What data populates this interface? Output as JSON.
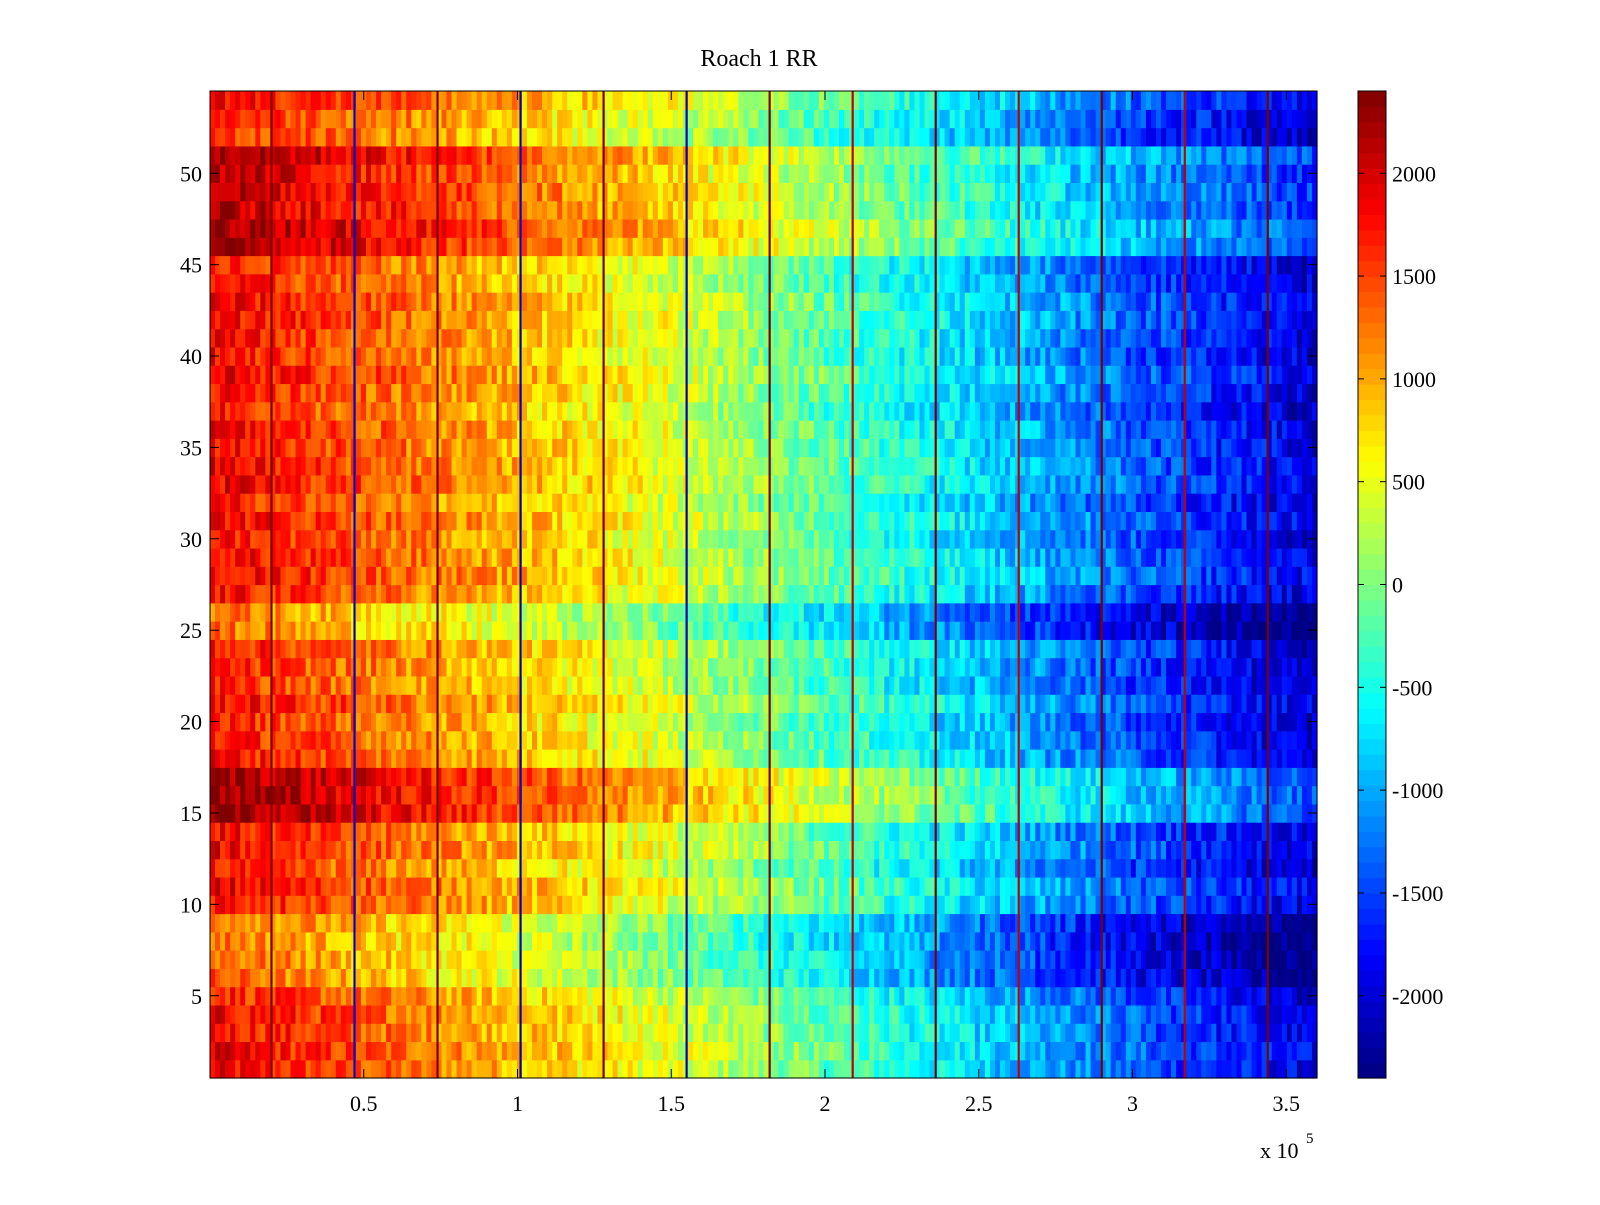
{
  "chart_data": {
    "type": "heatmap",
    "title": "Roach 1 RR",
    "xlabel": "",
    "ylabel": "",
    "x_exponent_label": {
      "base": "x 10",
      "exponent": "5"
    },
    "xlim": [
      0,
      3.6
    ],
    "x_unit_multiplier": 100000,
    "ylim": [
      0.5,
      54.5
    ],
    "x_ticks": [
      0.5,
      1,
      1.5,
      2,
      2.5,
      3,
      3.5
    ],
    "x_tick_labels": [
      "0.5",
      "1",
      "1.5",
      "2",
      "2.5",
      "3",
      "3.5"
    ],
    "y_ticks": [
      5,
      10,
      15,
      20,
      25,
      30,
      35,
      40,
      45,
      50
    ],
    "y_tick_labels": [
      "5",
      "10",
      "15",
      "20",
      "25",
      "30",
      "35",
      "40",
      "45",
      "50"
    ],
    "colorbar": {
      "colormap": "jet",
      "clim": [
        -2400,
        2400
      ],
      "ticks": [
        -2000,
        -1500,
        -1000,
        -500,
        0,
        500,
        1000,
        1500,
        2000
      ],
      "tick_labels": [
        "-2000",
        "-1500",
        "-1000",
        "-500",
        "0",
        "500",
        "1000",
        "1500",
        "2000"
      ]
    },
    "rows": 54,
    "value_trend": {
      "description_values": "approximate value falls linearly along x",
      "x": [
        0,
        0.5,
        1,
        1.5,
        2,
        2.5,
        3,
        3.6
      ],
      "value": [
        1800,
        1350,
        900,
        400,
        -200,
        -800,
        -1400,
        -2000
      ]
    },
    "row_offsets": {
      "high_rows": [
        15,
        16,
        17,
        46,
        47,
        48,
        49,
        50,
        51
      ],
      "high_offset": 450,
      "low_rows": [
        6,
        7,
        8,
        9,
        25,
        26
      ],
      "low_offset": -450
    },
    "vertical_stripes_x": [
      0.2,
      0.47,
      0.74,
      1.01,
      1.28,
      1.55,
      1.82,
      2.09,
      2.36,
      2.63,
      2.9,
      3.17,
      3.44
    ],
    "grid": false,
    "colors": {
      "axis": "#000000",
      "background": "#ffffff"
    }
  }
}
